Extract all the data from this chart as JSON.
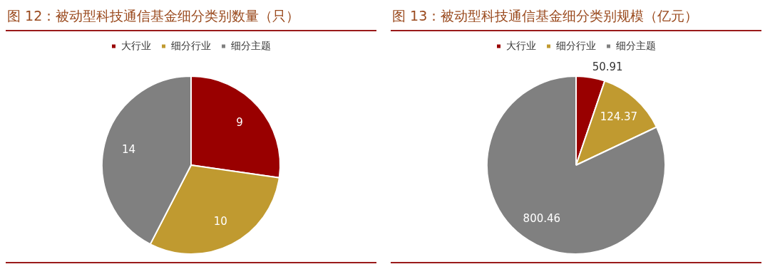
{
  "chart_data": [
    {
      "type": "pie",
      "title": "图 12：被动型科技通信基金细分类别数量（只）",
      "categories": [
        "大行业",
        "细分行业",
        "细分主题"
      ],
      "values": [
        9,
        10,
        14
      ],
      "colors": [
        "#990000",
        "#c09a30",
        "#808080"
      ],
      "legend": "top",
      "data_labels": true
    },
    {
      "type": "pie",
      "title": "图 13：被动型科技通信基金细分类别规模（亿元）",
      "categories": [
        "大行业",
        "细分行业",
        "细分主题"
      ],
      "values": [
        50.91,
        124.37,
        800.46
      ],
      "colors": [
        "#990000",
        "#c09a30",
        "#808080"
      ],
      "legend": "top",
      "data_labels": true
    }
  ]
}
